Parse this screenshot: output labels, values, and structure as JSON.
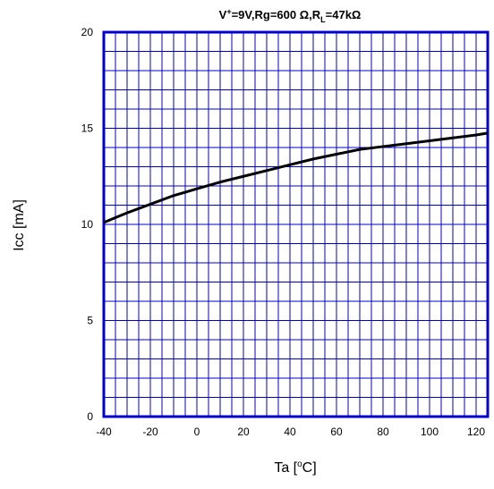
{
  "chart_data": {
    "type": "line",
    "title_parts": {
      "v_symbol": "V",
      "v_sup": "+",
      "v_rest": "=9V,Rg=600 Ω,R",
      "rl_sub": "L",
      "rl_rest": "=47kΩ"
    },
    "xlabel_parts": {
      "pre": "Ta [",
      "sup": "o",
      "post": "C]"
    },
    "ylabel": "Icc [mA]",
    "xlim": [
      -40,
      125
    ],
    "ylim": [
      0,
      20
    ],
    "x_ticks": [
      -40,
      -20,
      0,
      20,
      40,
      60,
      80,
      100,
      120
    ],
    "y_ticks": [
      0,
      5,
      10,
      15,
      20
    ],
    "x_minor_step": 5,
    "y_minor_step": 1,
    "grid": true,
    "colors": {
      "grid": "#0000cc",
      "line": "#000000",
      "frame": "#0000cc"
    },
    "series": [
      {
        "x": [
          -40,
          -30,
          -20,
          -10,
          0,
          10,
          20,
          30,
          40,
          50,
          60,
          70,
          80,
          90,
          100,
          110,
          120,
          125
        ],
        "values": [
          10.1,
          10.6,
          11.05,
          11.5,
          11.85,
          12.2,
          12.5,
          12.8,
          13.1,
          13.4,
          13.65,
          13.9,
          14.05,
          14.2,
          14.35,
          14.5,
          14.65,
          14.75
        ]
      }
    ]
  }
}
